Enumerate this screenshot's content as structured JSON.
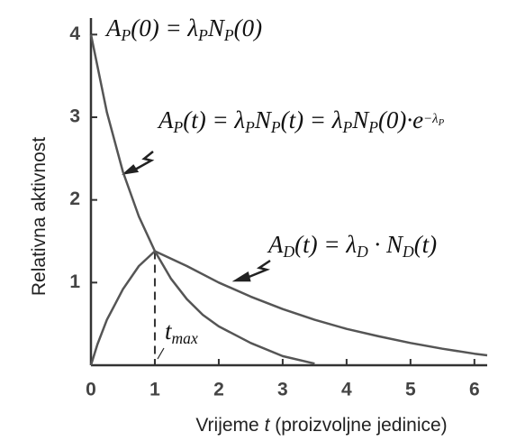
{
  "chart_data": {
    "type": "line",
    "xlabel": [
      {
        "text": "Vrijeme "
      },
      {
        "text": "t",
        "style": "italic"
      },
      {
        "text": " (proizvoljne jedinice)"
      }
    ],
    "ylabel": "Relativna aktivnost",
    "xlim": [
      0,
      6.2
    ],
    "ylim": [
      0,
      4.2
    ],
    "xticks": [
      0,
      1,
      2,
      3,
      4,
      5,
      6
    ],
    "yticks": [
      1,
      2,
      3,
      4
    ],
    "color": "#555555",
    "series": [
      {
        "x": [
          0,
          0.25,
          0.5,
          0.75,
          1,
          1.25,
          1.5,
          1.75,
          2,
          2.5,
          3,
          3.5
        ],
        "values": [
          4,
          3.06,
          2.34,
          1.8,
          1.38,
          1.05,
          0.8,
          0.61,
          0.47,
          0.27,
          0.11,
          0.02
        ]
      },
      {
        "x": [
          0,
          0.1,
          0.25,
          0.5,
          0.75,
          1,
          1.5,
          2,
          2.5,
          3,
          3.5,
          4,
          4.5,
          5,
          5.5,
          6,
          6.2
        ],
        "values": [
          0,
          0.25,
          0.55,
          0.92,
          1.2,
          1.38,
          1.2,
          1.0,
          0.83,
          0.68,
          0.55,
          0.44,
          0.35,
          0.27,
          0.2,
          0.14,
          0.12
        ]
      }
    ],
    "marker_x": 1,
    "marker_label": [
      {
        "text": "t"
      },
      {
        "text": "max",
        "pos": "sub"
      }
    ],
    "annotations": [
      [
        {
          "text": "A"
        },
        {
          "text": "P",
          "pos": "sub"
        },
        {
          "text": "(0) = λ"
        },
        {
          "text": "P",
          "pos": "sub"
        },
        {
          "text": "N"
        },
        {
          "text": "P",
          "pos": "sub"
        },
        {
          "text": "(0)"
        }
      ],
      [
        {
          "text": "A"
        },
        {
          "text": "P",
          "pos": "sub"
        },
        {
          "text": "(t) = λ"
        },
        {
          "text": "P",
          "pos": "sub"
        },
        {
          "text": "N"
        },
        {
          "text": "P",
          "pos": "sub"
        },
        {
          "text": "(t) = λ"
        },
        {
          "text": "P",
          "pos": "sub"
        },
        {
          "text": "N"
        },
        {
          "text": "P",
          "pos": "sub"
        },
        {
          "text": "(0)·e"
        },
        {
          "text": "−λ",
          "pos": "super"
        },
        {
          "text": "P",
          "pos": "super-sub"
        }
      ],
      [
        {
          "text": "A"
        },
        {
          "text": "D",
          "pos": "sub"
        },
        {
          "text": "(t) = λ"
        },
        {
          "text": "D",
          "pos": "sub"
        },
        {
          "text": " · N"
        },
        {
          "text": "D",
          "pos": "sub"
        },
        {
          "text": "(t)"
        }
      ]
    ]
  }
}
